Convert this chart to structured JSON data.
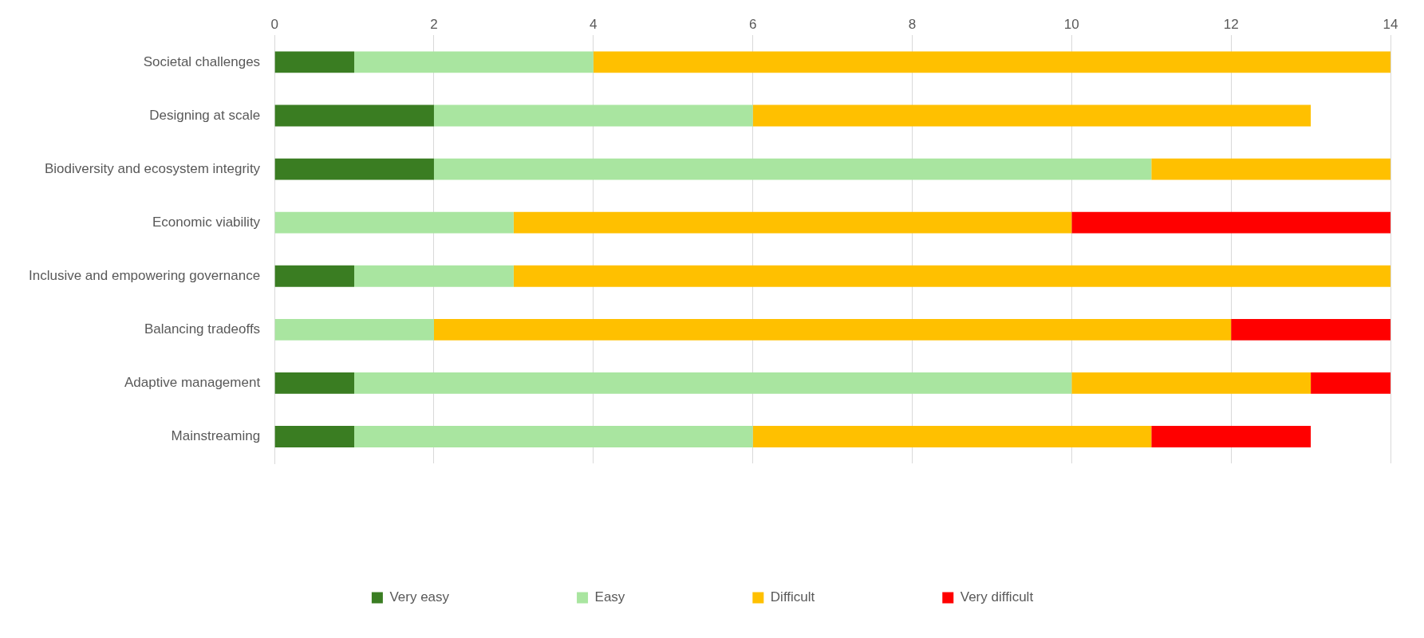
{
  "chart_data": {
    "type": "bar",
    "orientation": "horizontal",
    "stacked": true,
    "categories": [
      "Societal challenges",
      "Designing at scale",
      "Biodiversity and ecosystem integrity",
      "Economic viability",
      "Inclusive and empowering governance",
      "Balancing tradeoffs",
      "Adaptive management",
      "Mainstreaming"
    ],
    "series": [
      {
        "name": "Very easy",
        "color": "#3a7d22",
        "values": [
          1,
          2,
          2,
          0,
          1,
          0,
          1,
          1
        ]
      },
      {
        "name": "Easy",
        "color": "#a9e5a0",
        "values": [
          3,
          4,
          9,
          3,
          2,
          2,
          9,
          5
        ]
      },
      {
        "name": "Difficult",
        "color": "#ffc000",
        "values": [
          10,
          7,
          3,
          7,
          11,
          10,
          3,
          5
        ]
      },
      {
        "name": "Very difficult",
        "color": "#ff0000",
        "values": [
          0,
          0,
          0,
          4,
          0,
          2,
          1,
          2
        ]
      }
    ],
    "xlim": [
      0,
      14
    ],
    "xticks": [
      0,
      2,
      4,
      6,
      8,
      10,
      12,
      14
    ],
    "grid": "x",
    "legend": "bottom"
  }
}
